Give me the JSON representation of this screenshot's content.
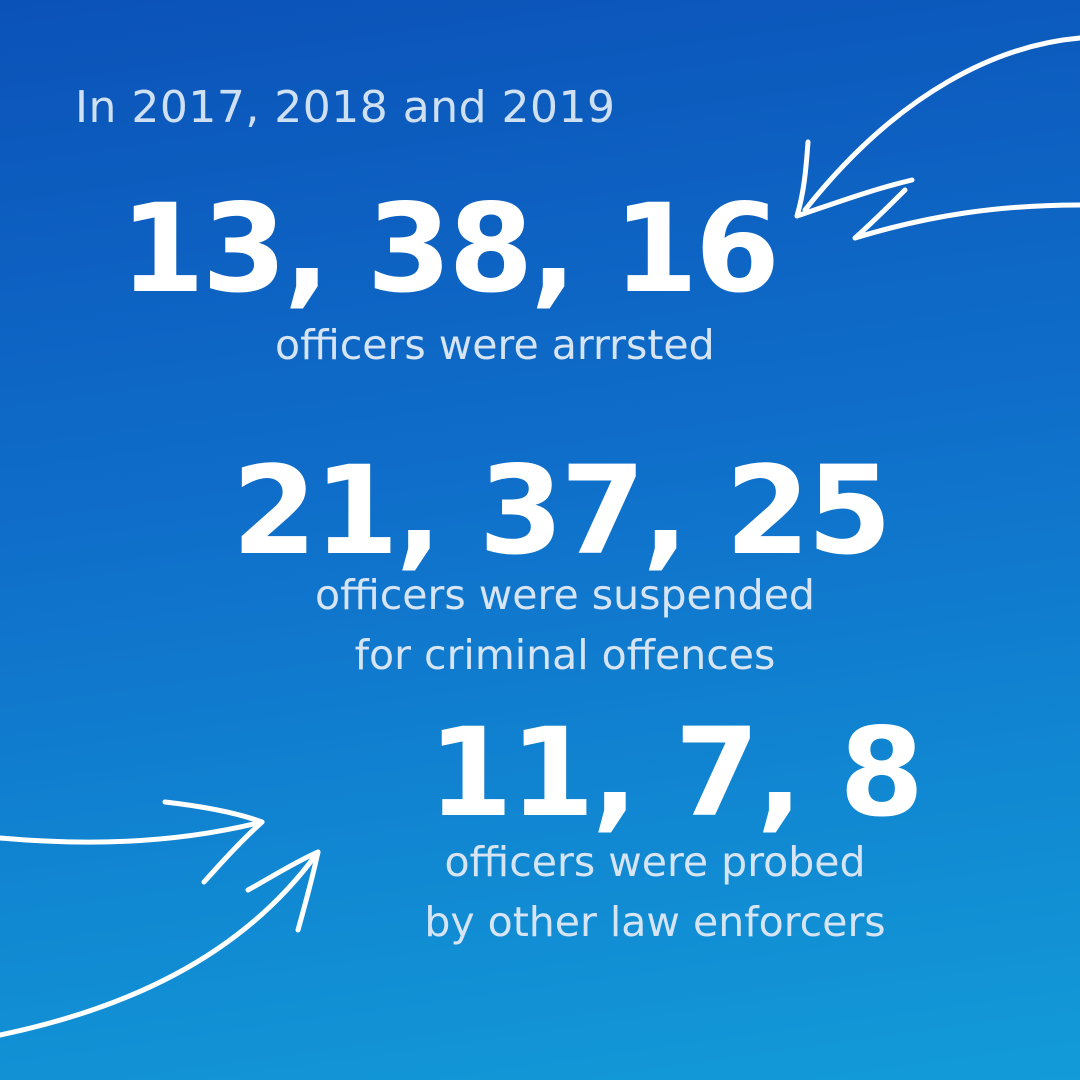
{
  "intro": "In 2017, 2018 and 2019",
  "stats": [
    {
      "numbers": "13, 38, 16",
      "caption_lines": [
        "officers  were arrrsted"
      ]
    },
    {
      "numbers": "21, 37, 25",
      "caption_lines": [
        "officers were suspended",
        "for criminal offences"
      ]
    },
    {
      "numbers": "11, 7, 8",
      "caption_lines": [
        "officers were probed",
        "by other law enforcers"
      ]
    }
  ],
  "colors": {
    "background_top": "#0b52b8",
    "background_bottom": "#129bd8",
    "numbers": "#ffffff",
    "captions": "#d6e4f4",
    "arrows": "#ffffff"
  },
  "icons": [
    "hand-drawn-arrow-top-right",
    "hand-drawn-arrow-bottom-left-upper",
    "hand-drawn-arrow-bottom-left-lower"
  ]
}
